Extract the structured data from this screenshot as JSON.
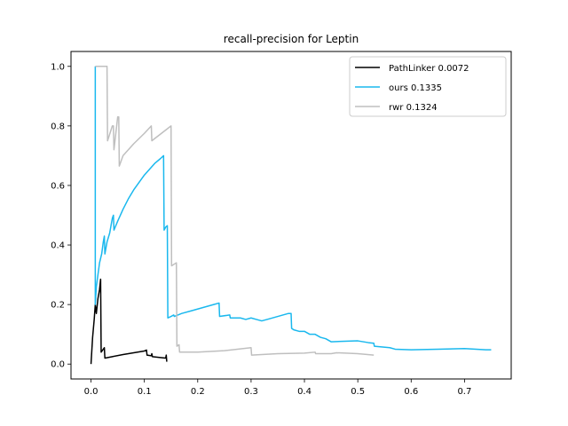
{
  "chart_data": {
    "type": "line",
    "title": "recall-precision for Leptin",
    "xlabel": "",
    "ylabel": "",
    "xlim": [
      -0.0375,
      0.7875
    ],
    "ylim": [
      -0.05,
      1.05
    ],
    "xticks": [
      0.0,
      0.1,
      0.2,
      0.3,
      0.4,
      0.5,
      0.6,
      0.7
    ],
    "xtick_labels": [
      "0.0",
      "0.1",
      "0.2",
      "0.3",
      "0.4",
      "0.5",
      "0.6",
      "0.7"
    ],
    "yticks": [
      0.0,
      0.2,
      0.4,
      0.6,
      0.8,
      1.0
    ],
    "ytick_labels": [
      "0.0",
      "0.2",
      "0.4",
      "0.6",
      "0.8",
      "1.0"
    ],
    "grid": false,
    "legend_position": "top-right",
    "series": [
      {
        "name": "PathLinker 0.0072",
        "color": "#000000",
        "points": [
          [
            0.0,
            0.0
          ],
          [
            0.003,
            0.09
          ],
          [
            0.006,
            0.15
          ],
          [
            0.008,
            0.2
          ],
          [
            0.01,
            0.17
          ],
          [
            0.013,
            0.22
          ],
          [
            0.016,
            0.25
          ],
          [
            0.018,
            0.285
          ],
          [
            0.019,
            0.04
          ],
          [
            0.025,
            0.055
          ],
          [
            0.026,
            0.02
          ],
          [
            0.04,
            0.025
          ],
          [
            0.06,
            0.032
          ],
          [
            0.08,
            0.038
          ],
          [
            0.1,
            0.044
          ],
          [
            0.104,
            0.047
          ],
          [
            0.105,
            0.03
          ],
          [
            0.113,
            0.028
          ],
          [
            0.114,
            0.035
          ],
          [
            0.115,
            0.025
          ],
          [
            0.13,
            0.022
          ],
          [
            0.14,
            0.02
          ],
          [
            0.141,
            0.03
          ],
          [
            0.142,
            0.008
          ]
        ]
      },
      {
        "name": "ours 0.1335",
        "color": "#1ab8ee",
        "points": [
          [
            0.008,
            1.0
          ],
          [
            0.008,
            0.2
          ],
          [
            0.01,
            0.26
          ],
          [
            0.013,
            0.3
          ],
          [
            0.016,
            0.34
          ],
          [
            0.02,
            0.37
          ],
          [
            0.023,
            0.41
          ],
          [
            0.025,
            0.43
          ],
          [
            0.026,
            0.37
          ],
          [
            0.03,
            0.41
          ],
          [
            0.035,
            0.44
          ],
          [
            0.038,
            0.47
          ],
          [
            0.04,
            0.49
          ],
          [
            0.042,
            0.5
          ],
          [
            0.043,
            0.45
          ],
          [
            0.05,
            0.48
          ],
          [
            0.06,
            0.52
          ],
          [
            0.07,
            0.555
          ],
          [
            0.08,
            0.585
          ],
          [
            0.09,
            0.61
          ],
          [
            0.1,
            0.635
          ],
          [
            0.11,
            0.655
          ],
          [
            0.12,
            0.675
          ],
          [
            0.13,
            0.69
          ],
          [
            0.136,
            0.7
          ],
          [
            0.137,
            0.45
          ],
          [
            0.14,
            0.46
          ],
          [
            0.143,
            0.465
          ],
          [
            0.144,
            0.155
          ],
          [
            0.15,
            0.16
          ],
          [
            0.155,
            0.165
          ],
          [
            0.156,
            0.16
          ],
          [
            0.17,
            0.17
          ],
          [
            0.19,
            0.18
          ],
          [
            0.21,
            0.19
          ],
          [
            0.23,
            0.2
          ],
          [
            0.24,
            0.205
          ],
          [
            0.241,
            0.16
          ],
          [
            0.26,
            0.165
          ],
          [
            0.261,
            0.155
          ],
          [
            0.28,
            0.155
          ],
          [
            0.29,
            0.15
          ],
          [
            0.3,
            0.155
          ],
          [
            0.31,
            0.15
          ],
          [
            0.32,
            0.145
          ],
          [
            0.33,
            0.15
          ],
          [
            0.35,
            0.16
          ],
          [
            0.37,
            0.17
          ],
          [
            0.375,
            0.17
          ],
          [
            0.376,
            0.12
          ],
          [
            0.38,
            0.115
          ],
          [
            0.39,
            0.11
          ],
          [
            0.4,
            0.11
          ],
          [
            0.41,
            0.1
          ],
          [
            0.42,
            0.1
          ],
          [
            0.43,
            0.09
          ],
          [
            0.44,
            0.085
          ],
          [
            0.45,
            0.075
          ],
          [
            0.5,
            0.078
          ],
          [
            0.52,
            0.072
          ],
          [
            0.53,
            0.07
          ],
          [
            0.531,
            0.06
          ],
          [
            0.56,
            0.055
          ],
          [
            0.57,
            0.05
          ],
          [
            0.6,
            0.048
          ],
          [
            0.65,
            0.05
          ],
          [
            0.7,
            0.052
          ],
          [
            0.74,
            0.048
          ],
          [
            0.75,
            0.048
          ]
        ]
      },
      {
        "name": "rwr 0.1324",
        "color": "#bfbfbf",
        "points": [
          [
            0.008,
            1.0
          ],
          [
            0.03,
            1.0
          ],
          [
            0.031,
            0.75
          ],
          [
            0.04,
            0.8
          ],
          [
            0.042,
            0.8
          ],
          [
            0.043,
            0.72
          ],
          [
            0.05,
            0.83
          ],
          [
            0.052,
            0.83
          ],
          [
            0.053,
            0.665
          ],
          [
            0.06,
            0.7
          ],
          [
            0.08,
            0.74
          ],
          [
            0.1,
            0.775
          ],
          [
            0.113,
            0.8
          ],
          [
            0.114,
            0.75
          ],
          [
            0.15,
            0.8
          ],
          [
            0.151,
            0.33
          ],
          [
            0.16,
            0.34
          ],
          [
            0.161,
            0.06
          ],
          [
            0.165,
            0.065
          ],
          [
            0.166,
            0.04
          ],
          [
            0.2,
            0.04
          ],
          [
            0.25,
            0.045
          ],
          [
            0.3,
            0.055
          ],
          [
            0.301,
            0.03
          ],
          [
            0.35,
            0.035
          ],
          [
            0.4,
            0.037
          ],
          [
            0.42,
            0.04
          ],
          [
            0.421,
            0.035
          ],
          [
            0.45,
            0.035
          ],
          [
            0.46,
            0.038
          ],
          [
            0.5,
            0.035
          ],
          [
            0.53,
            0.03
          ]
        ]
      }
    ]
  }
}
